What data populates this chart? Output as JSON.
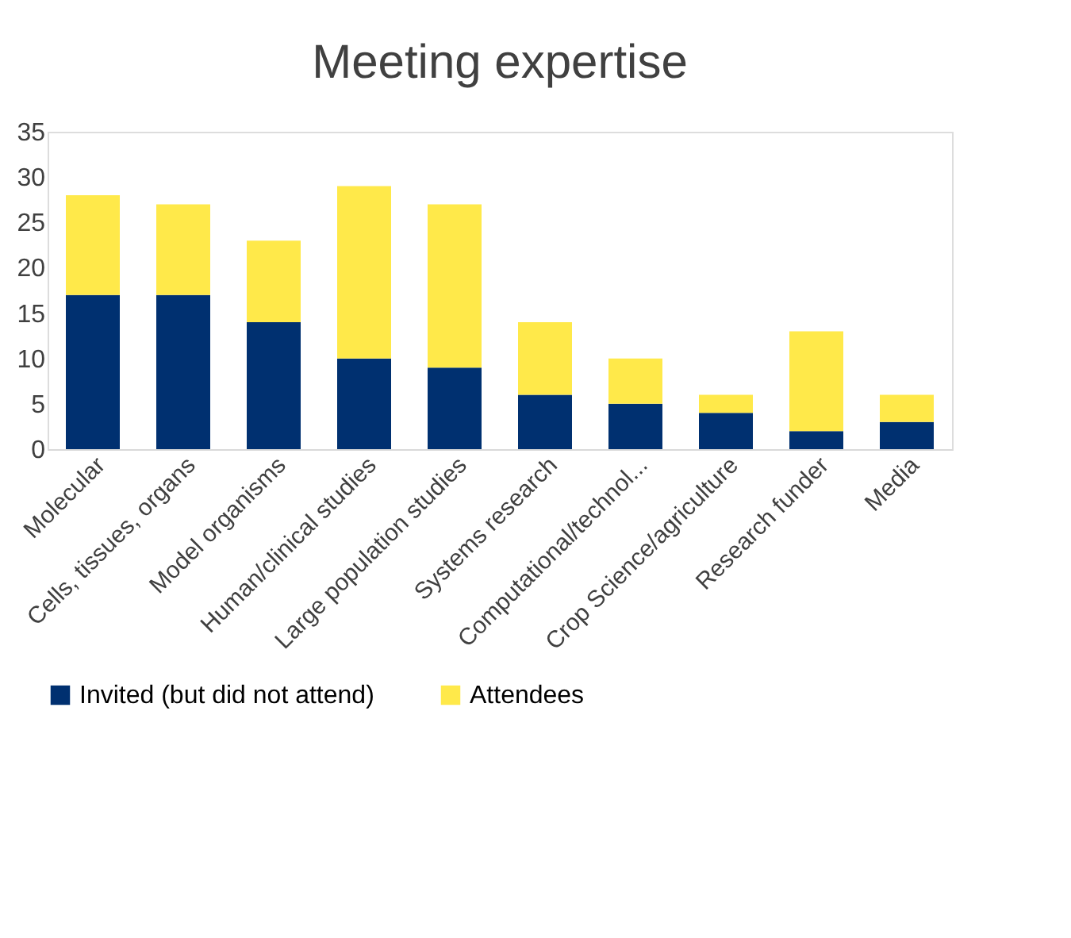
{
  "chart_data": {
    "type": "bar",
    "title": "Meeting expertise",
    "stacked": true,
    "categories": [
      "Molecular",
      "Cells, tissues, organs",
      "Model organisms",
      "Human/clinical studies",
      "Large population studies",
      "Systems research",
      "Computational/technol...",
      "Crop Science/agriculture",
      "Research funder",
      "Media"
    ],
    "series": [
      {
        "name": "Invited (but did not attend)",
        "color": "#003070",
        "values": [
          17,
          17,
          14,
          10,
          9,
          6,
          5,
          4,
          2,
          3
        ]
      },
      {
        "name": "Attendees",
        "color": "#ffe94a",
        "values": [
          11,
          10,
          9,
          19,
          18,
          8,
          5,
          2,
          11,
          3
        ]
      }
    ],
    "ylim": [
      0,
      35
    ],
    "yticks": [
      0,
      5,
      10,
      15,
      20,
      25,
      30,
      35
    ],
    "grid": false,
    "legend": "bottom"
  }
}
